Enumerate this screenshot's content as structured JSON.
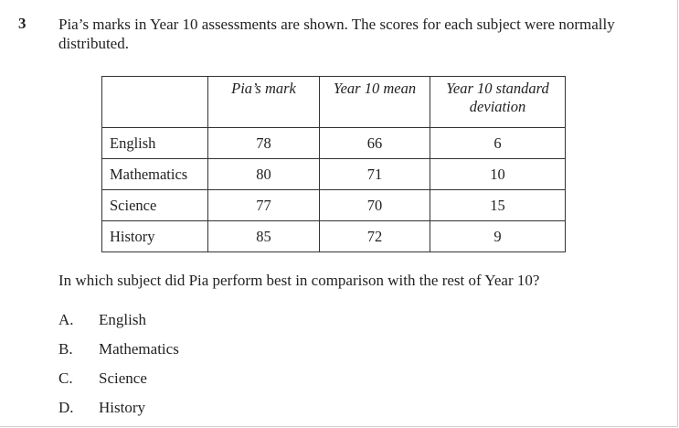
{
  "question": {
    "number": "3",
    "stem": "Pia’s marks in Year 10 assessments are shown. The scores for each subject were normally distributed.",
    "prompt": "In which subject did Pia perform best in comparison with the rest of Year 10?"
  },
  "table": {
    "headers": [
      "",
      "Pia’s mark",
      "Year 10 mean",
      "Year 10 standard deviation"
    ],
    "rows": [
      {
        "subject": "English",
        "mark": "78",
        "mean": "66",
        "sd": "6"
      },
      {
        "subject": "Mathematics",
        "mark": "80",
        "mean": "71",
        "sd": "10"
      },
      {
        "subject": "Science",
        "mark": "77",
        "mean": "70",
        "sd": "15"
      },
      {
        "subject": "History",
        "mark": "85",
        "mean": "72",
        "sd": "9"
      }
    ]
  },
  "options": [
    {
      "letter": "A.",
      "text": "English"
    },
    {
      "letter": "B.",
      "text": "Mathematics"
    },
    {
      "letter": "C.",
      "text": "Science"
    },
    {
      "letter": "D.",
      "text": "History"
    }
  ]
}
